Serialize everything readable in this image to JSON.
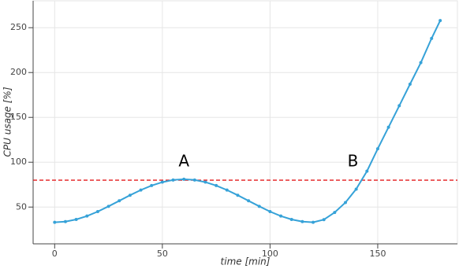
{
  "chart_data": {
    "type": "line",
    "x_label": "time [min]",
    "y_label": "CPU usage [%]",
    "x": [
      0,
      5,
      10,
      15,
      20,
      25,
      30,
      35,
      40,
      45,
      50,
      55,
      60,
      65,
      70,
      75,
      80,
      85,
      90,
      95,
      100,
      105,
      110,
      115,
      120,
      125,
      130,
      135,
      140,
      145,
      150,
      155,
      160,
      165,
      170,
      175,
      179
    ],
    "values": [
      33,
      33.8,
      36.2,
      40,
      45,
      50.8,
      57,
      63.2,
      69,
      74,
      77.8,
      80.2,
      81,
      80.2,
      77.8,
      74,
      69,
      63.2,
      57,
      50.8,
      45,
      40,
      36.2,
      33.8,
      33,
      36,
      44,
      55,
      70,
      90,
      115,
      139,
      163,
      187,
      211,
      238,
      258
    ],
    "color": "#36a2d8",
    "xlim": [
      -10,
      187
    ],
    "ylim": [
      9,
      280
    ],
    "xticks": [
      0,
      50,
      100,
      150
    ],
    "yticks": [
      50,
      100,
      150,
      200,
      250
    ],
    "grid": true,
    "threshold": 80,
    "threshold_color": "#e41a1c",
    "annotations": [
      {
        "text": "A",
        "x": 60,
        "y": 100
      },
      {
        "text": "B",
        "x": 138.5,
        "y": 100
      }
    ]
  }
}
